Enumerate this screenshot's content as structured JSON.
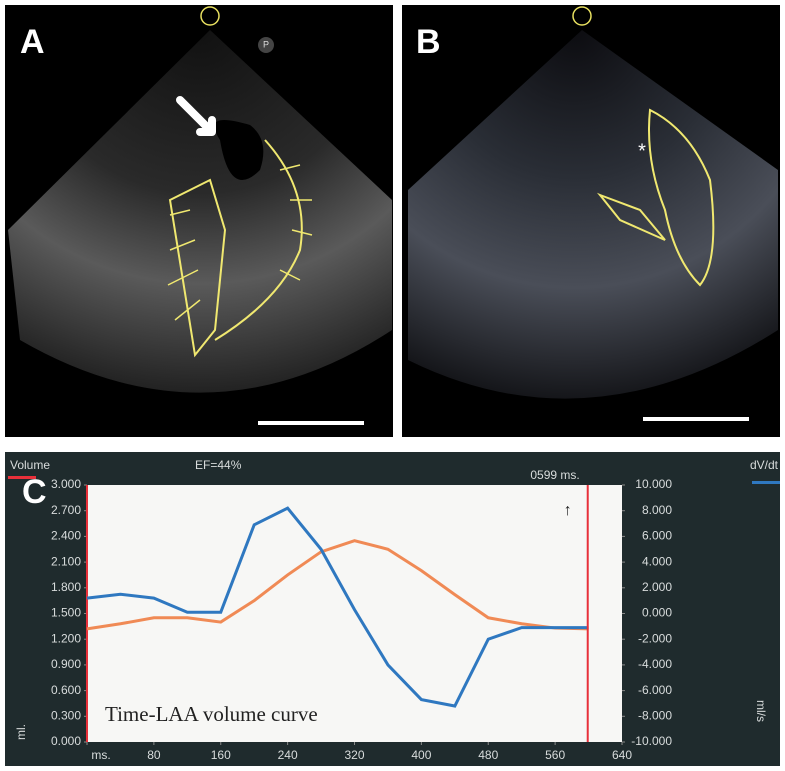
{
  "panels": {
    "a": {
      "label": "A",
      "marker": "P"
    },
    "b": {
      "label": "B",
      "marker": "*"
    }
  },
  "chart_data": {
    "type": "line",
    "panel_label": "C",
    "title": "EF=44%",
    "cursor": 599,
    "cursor_label": "0599 ms.",
    "cursor_color": "#e8303a",
    "arrow": "↑",
    "annotation": "Time-LAA volume curve",
    "ylabel": "ml.",
    "y2label": "ml/s",
    "x": [
      0,
      40,
      80,
      120,
      160,
      200,
      240,
      280,
      320,
      360,
      400,
      440,
      480,
      520,
      560,
      600
    ],
    "series": [
      {
        "name": "Volume",
        "color": "#f08a55",
        "axis": "y",
        "values": [
          1.32,
          1.38,
          1.45,
          1.45,
          1.4,
          1.65,
          1.95,
          2.22,
          2.35,
          2.25,
          2.0,
          1.72,
          1.45,
          1.38,
          1.33,
          1.32
        ]
      },
      {
        "name": "dV/dt",
        "color": "#2f78c0",
        "axis": "y2",
        "values": [
          1.2,
          1.5,
          1.2,
          0.1,
          0.1,
          6.9,
          8.2,
          5.0,
          0.3,
          -4.0,
          -6.7,
          -7.2,
          -2.0,
          -1.1,
          -1.1,
          -1.1
        ]
      }
    ],
    "xlim": [
      0,
      640
    ],
    "xticks": [
      {
        "value": 0,
        "label": "ms."
      },
      80,
      160,
      240,
      320,
      400,
      480,
      560,
      640
    ],
    "ylim": [
      0,
      3
    ],
    "yticks": [
      {
        "value": 0,
        "label": "0.000"
      },
      {
        "value": 0.3,
        "label": "0.300"
      },
      {
        "value": 0.6,
        "label": "0.600"
      },
      {
        "value": 0.9,
        "label": "0.900"
      },
      {
        "value": 1.2,
        "label": "1.200"
      },
      {
        "value": 1.5,
        "label": "1.500"
      },
      {
        "value": 1.8,
        "label": "1.800"
      },
      {
        "value": 2.1,
        "label": "2.100"
      },
      {
        "value": 2.4,
        "label": "2.400"
      },
      {
        "value": 2.7,
        "label": "2.700"
      },
      {
        "value": 3,
        "label": "3.000"
      }
    ],
    "y2lim": [
      -10,
      10
    ],
    "y2ticks": [
      {
        "value": -10,
        "label": "-10.000"
      },
      {
        "value": -8,
        "label": "-8.000"
      },
      {
        "value": -6,
        "label": "-6.000"
      },
      {
        "value": -4,
        "label": "-4.000"
      },
      {
        "value": -2,
        "label": "-2.000"
      },
      {
        "value": 0,
        "label": "0.000"
      },
      {
        "value": 2,
        "label": "2.000"
      },
      {
        "value": 4,
        "label": "4.000"
      },
      {
        "value": 6,
        "label": "6.000"
      },
      {
        "value": 8,
        "label": "8.000"
      },
      {
        "value": 10,
        "label": "10.000"
      }
    ]
  }
}
